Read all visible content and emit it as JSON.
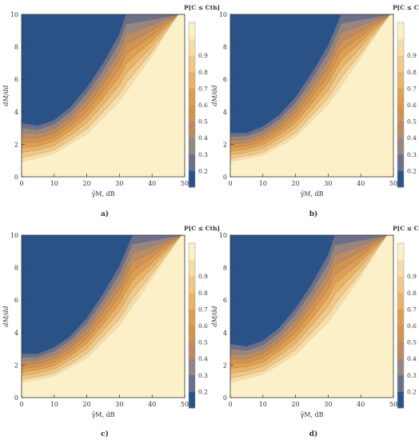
{
  "colors": {
    "ramp": [
      "#2a5287",
      "#6b6f89",
      "#968683",
      "#b98b66",
      "#cf9354",
      "#de9e54",
      "#e8b46a",
      "#f0c888",
      "#f5dca9",
      "#fbf0c8"
    ],
    "axis": "#333333"
  },
  "chart_data": [
    {
      "type": "heatmap",
      "panel_label": "a)",
      "xlabel": "γ̄M, dB",
      "ylabel": "dM/dd",
      "xlim": [
        0,
        50
      ],
      "ylim": [
        0,
        10
      ],
      "x_ticks": [
        "0",
        "10",
        "20",
        "30",
        "40",
        "50"
      ],
      "y_ticks": [
        "0",
        "2",
        "4",
        "6",
        "8",
        "10"
      ],
      "colorbar_title": "P[C ≤ Cth]",
      "colorbar_ticks": [
        "0.2",
        "0.3",
        "0.4",
        "0.5",
        "0.6",
        "0.7",
        "0.8",
        "0.9"
      ],
      "contour_levels": [
        0.2,
        0.3,
        0.4,
        0.5,
        0.6,
        0.7,
        0.8,
        0.9
      ],
      "blue_region_boundary": [
        [
          0,
          3.3
        ],
        [
          5,
          3.15
        ],
        [
          10,
          3.5
        ],
        [
          15,
          4.3
        ],
        [
          20,
          5.5
        ],
        [
          25,
          7.0
        ],
        [
          30,
          8.8
        ],
        [
          32,
          10
        ]
      ],
      "region_fill_boundary": [
        [
          0,
          0.9
        ],
        [
          10,
          1.4
        ],
        [
          20,
          2.6
        ],
        [
          30,
          4.6
        ],
        [
          40,
          7.4
        ],
        [
          48,
          10
        ]
      ]
    },
    {
      "type": "heatmap",
      "panel_label": "b)",
      "xlabel": "γ̄M, dB",
      "ylabel": "dM/dd",
      "xlim": [
        0,
        50
      ],
      "ylim": [
        0,
        10
      ],
      "x_ticks": [
        "0",
        "10",
        "20",
        "30",
        "40",
        "50"
      ],
      "y_ticks": [
        "0",
        "2",
        "4",
        "6",
        "8",
        "10"
      ],
      "colorbar_title": "P[C ≤ Cth]",
      "colorbar_ticks": [
        "0.2",
        "0.3",
        "0.4",
        "0.5",
        "0.6",
        "0.7",
        "0.8",
        "0.9"
      ],
      "contour_levels": [
        0.2,
        0.3,
        0.4,
        0.5,
        0.6,
        0.7,
        0.8,
        0.9
      ],
      "blue_region_boundary": [
        [
          0,
          2.7
        ],
        [
          5,
          2.7
        ],
        [
          10,
          3.1
        ],
        [
          15,
          3.8
        ],
        [
          20,
          4.9
        ],
        [
          25,
          6.4
        ],
        [
          30,
          8.1
        ],
        [
          34,
          10
        ]
      ],
      "region_fill_boundary": [
        [
          0,
          0.9
        ],
        [
          10,
          1.3
        ],
        [
          20,
          2.4
        ],
        [
          30,
          4.4
        ],
        [
          40,
          7.3
        ],
        [
          49,
          10
        ]
      ]
    },
    {
      "type": "heatmap",
      "panel_label": "c)",
      "xlabel": "γ̄M, dB",
      "ylabel": "dM/dd",
      "xlim": [
        0,
        50
      ],
      "ylim": [
        0,
        10
      ],
      "x_ticks": [
        "0",
        "10",
        "20",
        "30",
        "40",
        "50"
      ],
      "y_ticks": [
        "0",
        "2",
        "4",
        "6",
        "8",
        "10"
      ],
      "colorbar_title": "P[C ≤ Cth]",
      "colorbar_ticks": [
        "0.2",
        "0.3",
        "0.4",
        "0.5",
        "0.6",
        "0.7",
        "0.8",
        "0.9"
      ],
      "contour_levels": [
        0.2,
        0.3,
        0.4,
        0.5,
        0.6,
        0.7,
        0.8,
        0.9
      ],
      "blue_region_boundary": [
        [
          0,
          2.7
        ],
        [
          5,
          2.7
        ],
        [
          10,
          3.1
        ],
        [
          15,
          3.8
        ],
        [
          20,
          4.9
        ],
        [
          25,
          6.4
        ],
        [
          30,
          8.1
        ],
        [
          34,
          10
        ]
      ],
      "region_fill_boundary": [
        [
          0,
          0.9
        ],
        [
          10,
          1.3
        ],
        [
          20,
          2.4
        ],
        [
          30,
          4.4
        ],
        [
          40,
          7.3
        ],
        [
          49,
          10
        ]
      ]
    },
    {
      "type": "heatmap",
      "panel_label": "d)",
      "xlabel": "γ̄M, dB",
      "ylabel": "dM/dd",
      "xlim": [
        0,
        50
      ],
      "ylim": [
        0,
        10
      ],
      "x_ticks": [
        "0",
        "10",
        "20",
        "30",
        "40",
        "50"
      ],
      "y_ticks": [
        "0",
        "2",
        "4",
        "6",
        "8",
        "10"
      ],
      "colorbar_title": "P[C ≤ Cth]",
      "colorbar_ticks": [
        "0.2",
        "0.3",
        "0.4",
        "0.5",
        "0.6",
        "0.7",
        "0.8",
        "0.9"
      ],
      "contour_levels": [
        0.2,
        0.3,
        0.4,
        0.5,
        0.6,
        0.7,
        0.8,
        0.9
      ],
      "blue_region_boundary": [
        [
          0,
          3.3
        ],
        [
          5,
          3.15
        ],
        [
          10,
          3.5
        ],
        [
          15,
          4.3
        ],
        [
          20,
          5.5
        ],
        [
          25,
          7.0
        ],
        [
          30,
          8.8
        ],
        [
          32,
          10
        ]
      ],
      "region_fill_boundary": [
        [
          0,
          0.9
        ],
        [
          10,
          1.4
        ],
        [
          20,
          2.6
        ],
        [
          30,
          4.6
        ],
        [
          40,
          7.4
        ],
        [
          48,
          10
        ]
      ]
    }
  ]
}
